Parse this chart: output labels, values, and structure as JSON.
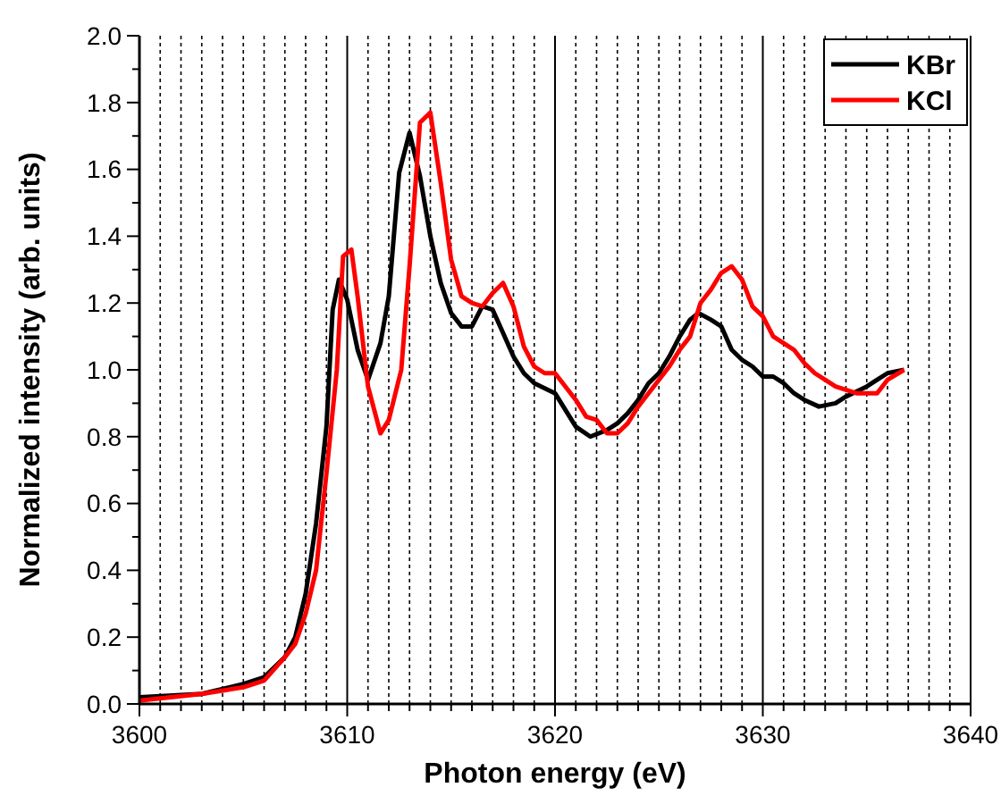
{
  "chart_data": {
    "type": "line",
    "xlabel": "Photon energy (eV)",
    "ylabel": "Normalized intensity (arb. units)",
    "xlim": [
      3600,
      3640
    ],
    "ylim": [
      0,
      2
    ],
    "xticks": [
      3600,
      {
        "value": 3601,
        "label": null
      },
      {
        "value": 3602,
        "label": null
      },
      {
        "value": 3603,
        "label": null
      },
      {
        "value": 3604,
        "label": null
      },
      {
        "value": 3605,
        "label": null
      },
      {
        "value": 3606,
        "label": null
      },
      {
        "value": 3607,
        "label": null
      },
      {
        "value": 3608,
        "label": null
      },
      {
        "value": 3609,
        "label": null
      },
      3610,
      {
        "value": 3611,
        "label": null
      },
      {
        "value": 3612,
        "label": null
      },
      {
        "value": 3613,
        "label": null
      },
      {
        "value": 3614,
        "label": null
      },
      {
        "value": 3615,
        "label": null
      },
      {
        "value": 3616,
        "label": null
      },
      {
        "value": 3617,
        "label": null
      },
      {
        "value": 3618,
        "label": null
      },
      {
        "value": 3619,
        "label": null
      },
      3620,
      {
        "value": 3621,
        "label": null
      },
      {
        "value": 3622,
        "label": null
      },
      {
        "value": 3623,
        "label": null
      },
      {
        "value": 3624,
        "label": null
      },
      {
        "value": 3625,
        "label": null
      },
      {
        "value": 3626,
        "label": null
      },
      {
        "value": 3627,
        "label": null
      },
      {
        "value": 3628,
        "label": null
      },
      {
        "value": 3629,
        "label": null
      },
      3630,
      {
        "value": 3631,
        "label": null
      },
      {
        "value": 3632,
        "label": null
      },
      {
        "value": 3633,
        "label": null
      },
      {
        "value": 3634,
        "label": null
      },
      {
        "value": 3635,
        "label": null
      },
      {
        "value": 3636,
        "label": null
      },
      {
        "value": 3637,
        "label": null
      },
      {
        "value": 3638,
        "label": null
      },
      {
        "value": 3639,
        "label": null
      },
      3640
    ],
    "yticks": [
      {
        "value": 0,
        "label": "0.0"
      },
      {
        "value": 0.1,
        "label": null
      },
      {
        "value": 0.2,
        "label": "0.2"
      },
      {
        "value": 0.3,
        "label": null
      },
      {
        "value": 0.4,
        "label": "0.4"
      },
      {
        "value": 0.5,
        "label": null
      },
      {
        "value": 0.6,
        "label": "0.6"
      },
      {
        "value": 0.7,
        "label": null
      },
      {
        "value": 0.8,
        "label": "0.8"
      },
      {
        "value": 0.9,
        "label": null
      },
      {
        "value": 1,
        "label": "1.0"
      },
      {
        "value": 1.1,
        "label": null
      },
      {
        "value": 1.2,
        "label": "1.2"
      },
      {
        "value": 1.3,
        "label": null
      },
      {
        "value": 1.4,
        "label": "1.4"
      },
      {
        "value": 1.5,
        "label": null
      },
      {
        "value": 1.6,
        "label": "1.6"
      },
      {
        "value": 1.7,
        "label": null
      },
      {
        "value": 1.8,
        "label": "1.8"
      },
      {
        "value": 1.9,
        "label": null
      },
      {
        "value": 2,
        "label": "2.0"
      }
    ],
    "grid": "x",
    "legend": "top right",
    "marker": "none",
    "line_style": "solid",
    "series": [
      {
        "name": "KBr",
        "color": "#000000",
        "x": [
          3600,
          3603,
          3605,
          3606,
          3607,
          3607.5,
          3608,
          3608.5,
          3609,
          3609.3,
          3609.6,
          3610,
          3610.5,
          3611,
          3611.6,
          3612,
          3612.5,
          3613,
          3613.5,
          3614,
          3614.5,
          3615,
          3615.5,
          3616,
          3616.5,
          3617,
          3617.5,
          3618,
          3618.5,
          3619,
          3620,
          3620.5,
          3621,
          3621.7,
          3622.5,
          3623,
          3623.5,
          3624,
          3624.5,
          3625,
          3625.5,
          3626,
          3626.5,
          3626.9,
          3627.5,
          3628,
          3628.5,
          3629,
          3629.5,
          3630,
          3630.5,
          3631,
          3631.5,
          3632,
          3632.7,
          3633.5,
          3634,
          3635,
          3635.5,
          3636,
          3636.8
        ],
        "values": [
          0.02,
          0.03,
          0.06,
          0.08,
          0.14,
          0.2,
          0.33,
          0.54,
          0.83,
          1.18,
          1.27,
          1.21,
          1.06,
          0.97,
          1.08,
          1.22,
          1.59,
          1.71,
          1.58,
          1.4,
          1.26,
          1.17,
          1.13,
          1.13,
          1.19,
          1.18,
          1.11,
          1.04,
          0.99,
          0.96,
          0.93,
          0.88,
          0.83,
          0.8,
          0.82,
          0.84,
          0.87,
          0.91,
          0.96,
          0.99,
          1.04,
          1.1,
          1.15,
          1.17,
          1.15,
          1.13,
          1.06,
          1.03,
          1.01,
          0.98,
          0.98,
          0.96,
          0.93,
          0.91,
          0.89,
          0.9,
          0.92,
          0.95,
          0.97,
          0.99,
          1.0
        ]
      },
      {
        "name": "KCl",
        "color": "#ff0000",
        "x": [
          3600,
          3603,
          3605,
          3606,
          3607,
          3607.5,
          3608,
          3608.5,
          3609,
          3609.5,
          3609.8,
          3610.2,
          3610.5,
          3611,
          3611.6,
          3612,
          3612.6,
          3613,
          3613.5,
          3614,
          3614.5,
          3615,
          3615.5,
          3616,
          3616.5,
          3617,
          3617.5,
          3618,
          3618.5,
          3619,
          3619.5,
          3620,
          3620.5,
          3621,
          3621.5,
          3622,
          3622.5,
          3623,
          3623.5,
          3624,
          3624.5,
          3625,
          3625.5,
          3626,
          3626.5,
          3627,
          3627.5,
          3628,
          3628.5,
          3629,
          3629.5,
          3630,
          3630.5,
          3631,
          3631.5,
          3632,
          3632.5,
          3633,
          3633.5,
          3634,
          3634.5,
          3635.5,
          3636,
          3636.8
        ],
        "values": [
          0.01,
          0.03,
          0.05,
          0.07,
          0.14,
          0.18,
          0.27,
          0.4,
          0.69,
          1.0,
          1.34,
          1.36,
          1.22,
          0.95,
          0.81,
          0.85,
          1.0,
          1.31,
          1.74,
          1.77,
          1.56,
          1.33,
          1.22,
          1.2,
          1.19,
          1.23,
          1.26,
          1.19,
          1.07,
          1.01,
          0.99,
          0.99,
          0.95,
          0.91,
          0.86,
          0.85,
          0.81,
          0.81,
          0.84,
          0.89,
          0.93,
          0.97,
          1.01,
          1.06,
          1.1,
          1.2,
          1.24,
          1.29,
          1.31,
          1.27,
          1.19,
          1.16,
          1.1,
          1.08,
          1.06,
          1.02,
          0.99,
          0.97,
          0.95,
          0.94,
          0.93,
          0.93,
          0.97,
          1.0
        ]
      }
    ]
  }
}
